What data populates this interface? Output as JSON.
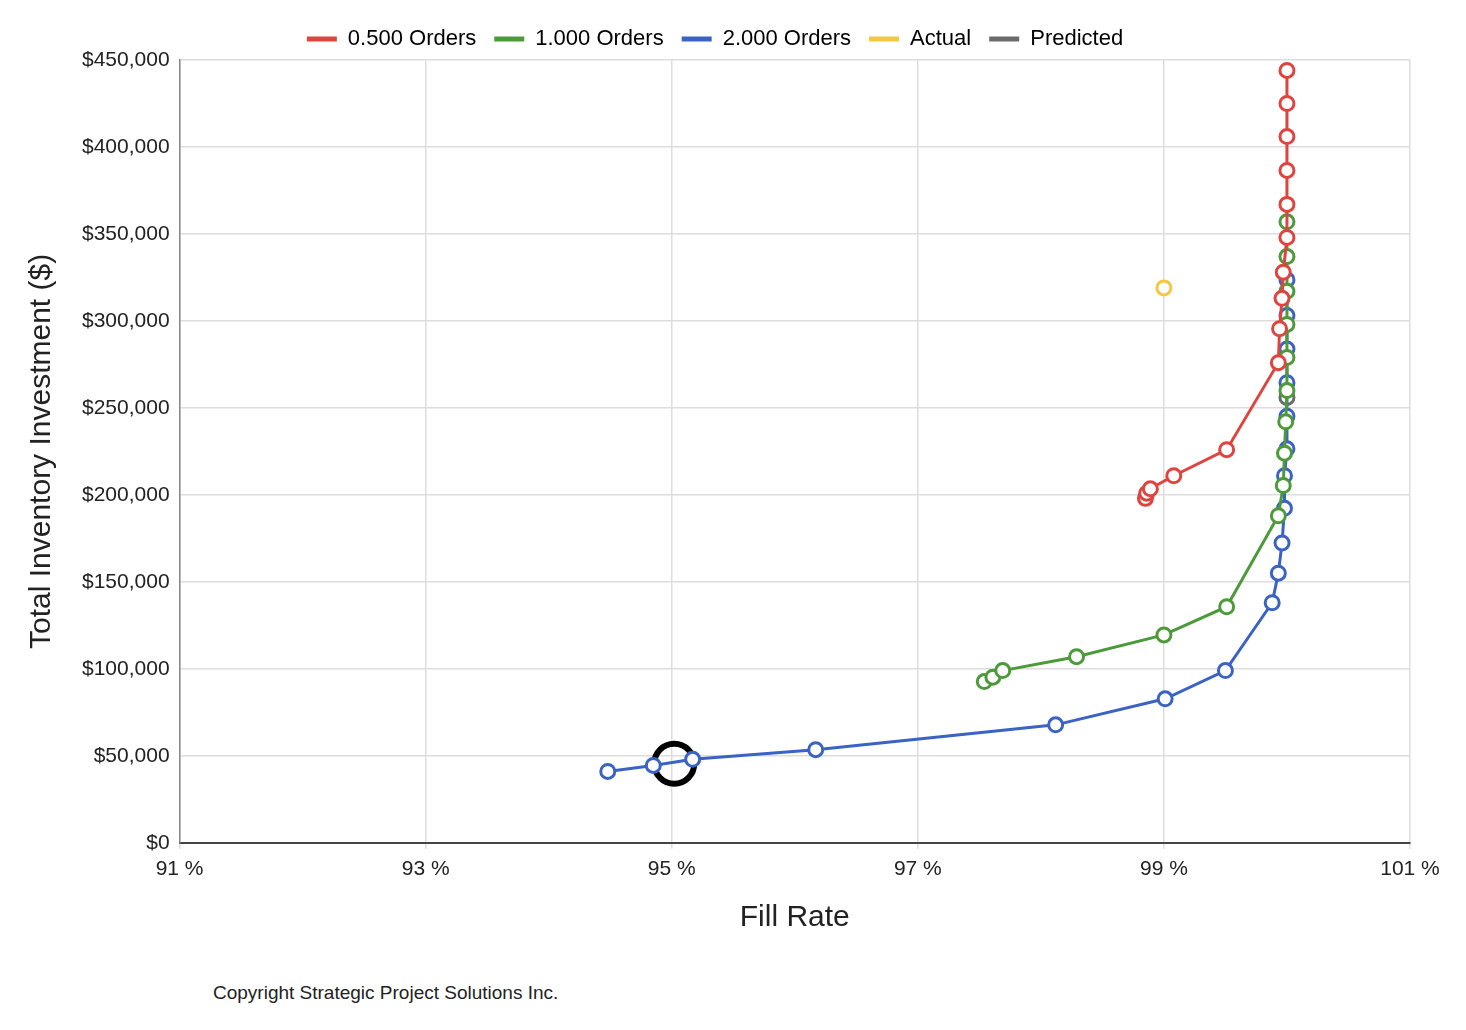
{
  "chart_data": {
    "type": "scatter",
    "x_label": "Fill Rate",
    "y_label": "Total Inventory Investment ($)",
    "footer": "Copyright Strategic Project Solutions Inc.",
    "xlim": [
      91,
      101
    ],
    "xticks": [
      {
        "value": 91,
        "label": "91 %"
      },
      {
        "value": 93,
        "label": "93 %"
      },
      {
        "value": 95,
        "label": "95 %"
      },
      {
        "value": 97,
        "label": "97 %"
      },
      {
        "value": 99,
        "label": "99 %"
      },
      {
        "value": 101,
        "label": "101 %"
      }
    ],
    "ylim": [
      0,
      450000
    ],
    "yticks": [
      {
        "value": 0,
        "label": "$0"
      },
      {
        "value": 50000,
        "label": "$50,000"
      },
      {
        "value": 100000,
        "label": "$100,000"
      },
      {
        "value": 150000,
        "label": "$150,000"
      },
      {
        "value": 200000,
        "label": "$200,000"
      },
      {
        "value": 250000,
        "label": "$250,000"
      },
      {
        "value": 300000,
        "label": "$300,000"
      },
      {
        "value": 350000,
        "label": "$350,000"
      },
      {
        "value": 400000,
        "label": "$400,000"
      },
      {
        "value": 450000,
        "label": "$450,000"
      }
    ],
    "grid": true,
    "legend": "top",
    "series": [
      {
        "name": "0.500 Orders",
        "color": "#e0443e",
        "type": "line",
        "marker": "circle",
        "line_style": "solid",
        "x": [
          98.85,
          98.86,
          98.89,
          99.08,
          99.51,
          99.93,
          99.94,
          99.96,
          99.97,
          100.0,
          100.0,
          100.0,
          100.0,
          100.0,
          100.0
        ],
        "values": [
          198000,
          201000,
          203500,
          211000,
          226000,
          276000,
          295500,
          313000,
          328000,
          348000,
          367000,
          386500,
          406000,
          425000,
          444000
        ]
      },
      {
        "name": "1.000 Orders",
        "color": "#4c9a3a",
        "type": "line",
        "marker": "circle",
        "line_style": "solid",
        "x": [
          97.54,
          97.61,
          97.69,
          98.29,
          99.0,
          99.51,
          99.93,
          99.97,
          99.98,
          99.99,
          100.0,
          100.0,
          100.0,
          100.0,
          100.0,
          100.0
        ],
        "values": [
          92700,
          95200,
          99000,
          107000,
          119500,
          135700,
          188000,
          205400,
          224000,
          242000,
          260000,
          279000,
          298000,
          317000,
          337000,
          357000
        ]
      },
      {
        "name": "2.000 Orders",
        "color": "#3b63c4",
        "type": "line",
        "marker": "circle",
        "line_style": "solid",
        "x": [
          94.48,
          94.85,
          95.17,
          96.17,
          98.12,
          99.01,
          99.5,
          99.88,
          99.93,
          99.96,
          99.98,
          99.98,
          100.0,
          100.0,
          100.0,
          100.0,
          100.0,
          100.0
        ],
        "values": [
          41000,
          44500,
          48000,
          53500,
          67800,
          82800,
          99000,
          138000,
          155000,
          172400,
          192300,
          211000,
          226500,
          245200,
          264500,
          283800,
          303100,
          323600
        ]
      },
      {
        "name": "Actual",
        "color": "#f2c842",
        "type": "scatter",
        "marker": "circle",
        "x": [
          99.0
        ],
        "values": [
          319000
        ]
      },
      {
        "name": "Predicted",
        "color": "#6b6b6b",
        "type": "scatter",
        "marker": "circle",
        "x": [
          100.0
        ],
        "values": [
          256000
        ]
      }
    ],
    "selected": {
      "x": 95.02,
      "y": 45400,
      "color": "#000000"
    }
  }
}
